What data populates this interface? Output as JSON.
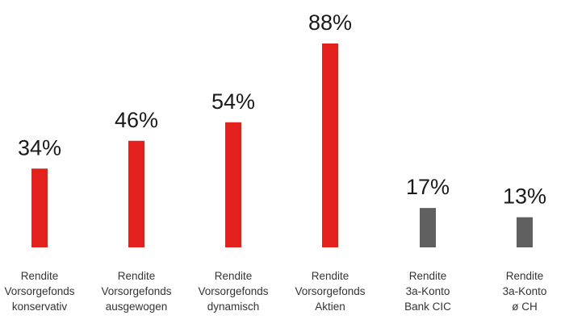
{
  "chart_data": {
    "type": "bar",
    "categories": [
      [
        "Rendite",
        "Vorsorgefonds",
        "konservativ"
      ],
      [
        "Rendite",
        "Vorsorgefonds",
        "ausgewogen"
      ],
      [
        "Rendite",
        "Vorsorgefonds",
        "dynamisch"
      ],
      [
        "Rendite",
        "Vorsorgefonds",
        "Aktien"
      ],
      [
        "Rendite",
        "3a-Konto",
        "Bank CIC"
      ],
      [
        "Rendite",
        "3a-Konto",
        "ø CH"
      ]
    ],
    "values": [
      34,
      46,
      54,
      88,
      17,
      13
    ],
    "value_labels": [
      "34%",
      "46%",
      "54%",
      "88%",
      "17%",
      "13%"
    ],
    "colors": [
      "#e3201b",
      "#e3201b",
      "#e3201b",
      "#e3201b",
      "#5f5f5f",
      "#5f5f5f"
    ],
    "ylim": [
      0,
      88
    ],
    "grid": false,
    "legend": "none"
  }
}
